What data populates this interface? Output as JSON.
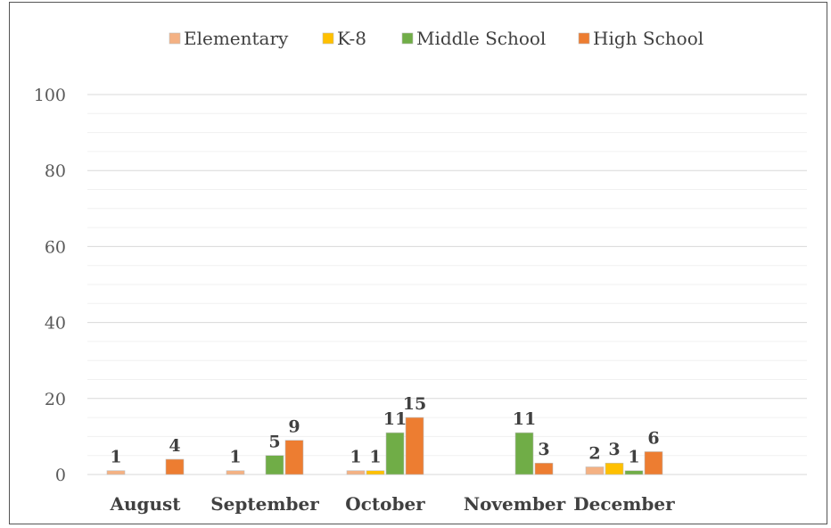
{
  "chart_data": {
    "type": "bar",
    "categories": [
      "August",
      "September",
      "October",
      "November",
      "December"
    ],
    "series": [
      {
        "name": "Elementary",
        "color": "#F4B183",
        "values": [
          1,
          1,
          1,
          null,
          2
        ]
      },
      {
        "name": "K-8",
        "color": "#FFC000",
        "values": [
          null,
          null,
          1,
          null,
          3
        ]
      },
      {
        "name": "Middle School",
        "color": "#70AD47",
        "values": [
          null,
          5,
          11,
          11,
          1
        ]
      },
      {
        "name": "High School",
        "color": "#ED7D31",
        "values": [
          4,
          9,
          15,
          3,
          6
        ]
      }
    ],
    "yticks": [
      0,
      20,
      40,
      60,
      80,
      100
    ],
    "ylim": [
      0,
      100
    ],
    "grid": true,
    "legend_position": "top",
    "title": "",
    "xlabel": "",
    "ylabel": ""
  }
}
